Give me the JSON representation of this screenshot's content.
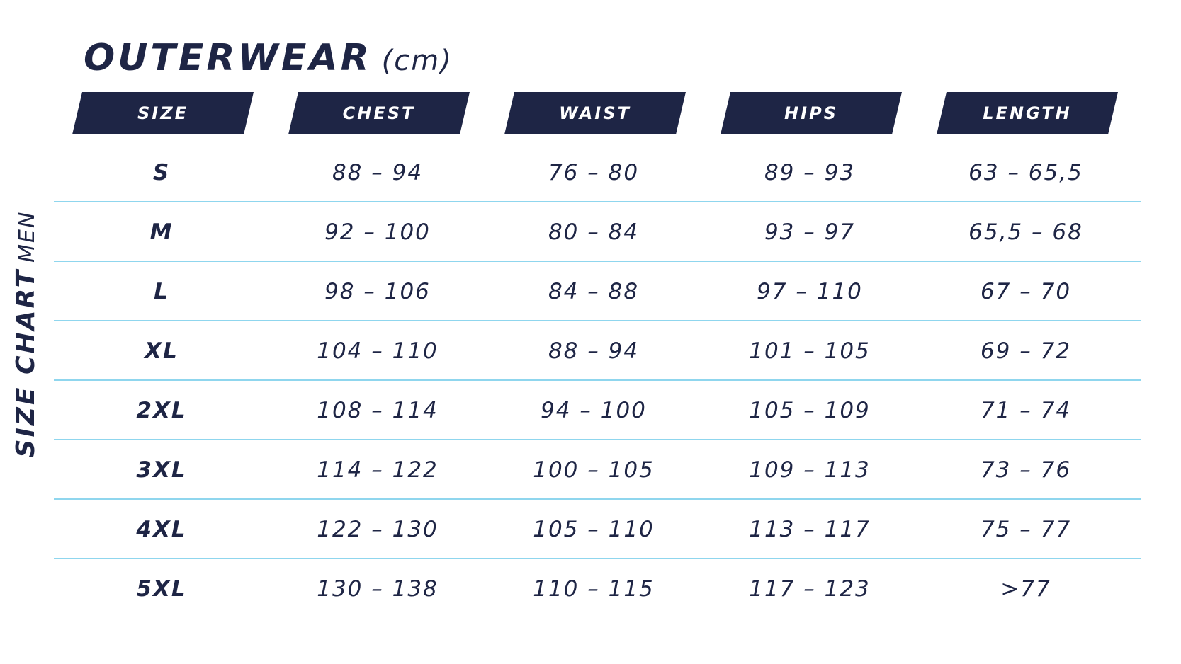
{
  "title": "OUTERWEAR",
  "unit": "(cm)",
  "side_label": {
    "main": "SIZE CHART",
    "sub": "MEN"
  },
  "columns": [
    "SIZE",
    "CHEST",
    "WAIST",
    "HIPS",
    "LENGTH"
  ],
  "rows": [
    [
      "S",
      "88 – 94",
      "76 – 80",
      "89 – 93",
      "63 – 65,5"
    ],
    [
      "M",
      "92 – 100",
      "80 – 84",
      "93 – 97",
      "65,5 – 68"
    ],
    [
      "L",
      "98 – 106",
      "84 – 88",
      "97 – 110",
      "67 – 70"
    ],
    [
      "XL",
      "104 – 110",
      "88 – 94",
      "101 – 105",
      "69 – 72"
    ],
    [
      "2XL",
      "108 – 114",
      "94 – 100",
      "105 – 109",
      "71 – 74"
    ],
    [
      "3XL",
      "114 – 122",
      "100 – 105",
      "109 – 113",
      "73 – 76"
    ],
    [
      "4XL",
      "122 – 130",
      "105 – 110",
      "113 – 117",
      "75 – 77"
    ],
    [
      "5XL",
      "130 – 138",
      "110 – 115",
      "117 – 123",
      ">77"
    ]
  ],
  "colors": {
    "navy": "#1e2545",
    "separator": "#8fd6ee",
    "background": "#ffffff"
  }
}
